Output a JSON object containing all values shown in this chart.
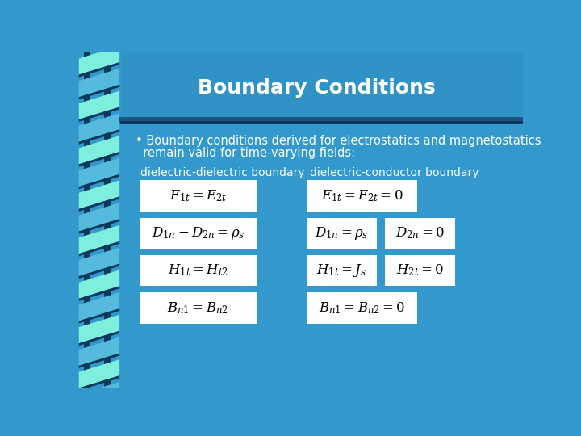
{
  "title": "Boundary Conditions",
  "bg_color": "#3399CC",
  "title_color": "#FFFFFF",
  "text_color": "#FFFFFF",
  "bullet_line1": "• Boundary conditions derived for electrostatics and magnetostatics",
  "bullet_line2": "  remain valid for time-varying fields:",
  "label_dd": "dielectric-dielectric boundary",
  "label_dc": "dielectric-conductor boundary",
  "header_bar_color": "#2277AA",
  "separator_color": "#1A5580",
  "stripe_light": "#7EEEDD",
  "stripe_mid": "#55BBDD",
  "stripe_dark": "#0D3A5A",
  "stripe_bg": "#0D3A5A"
}
